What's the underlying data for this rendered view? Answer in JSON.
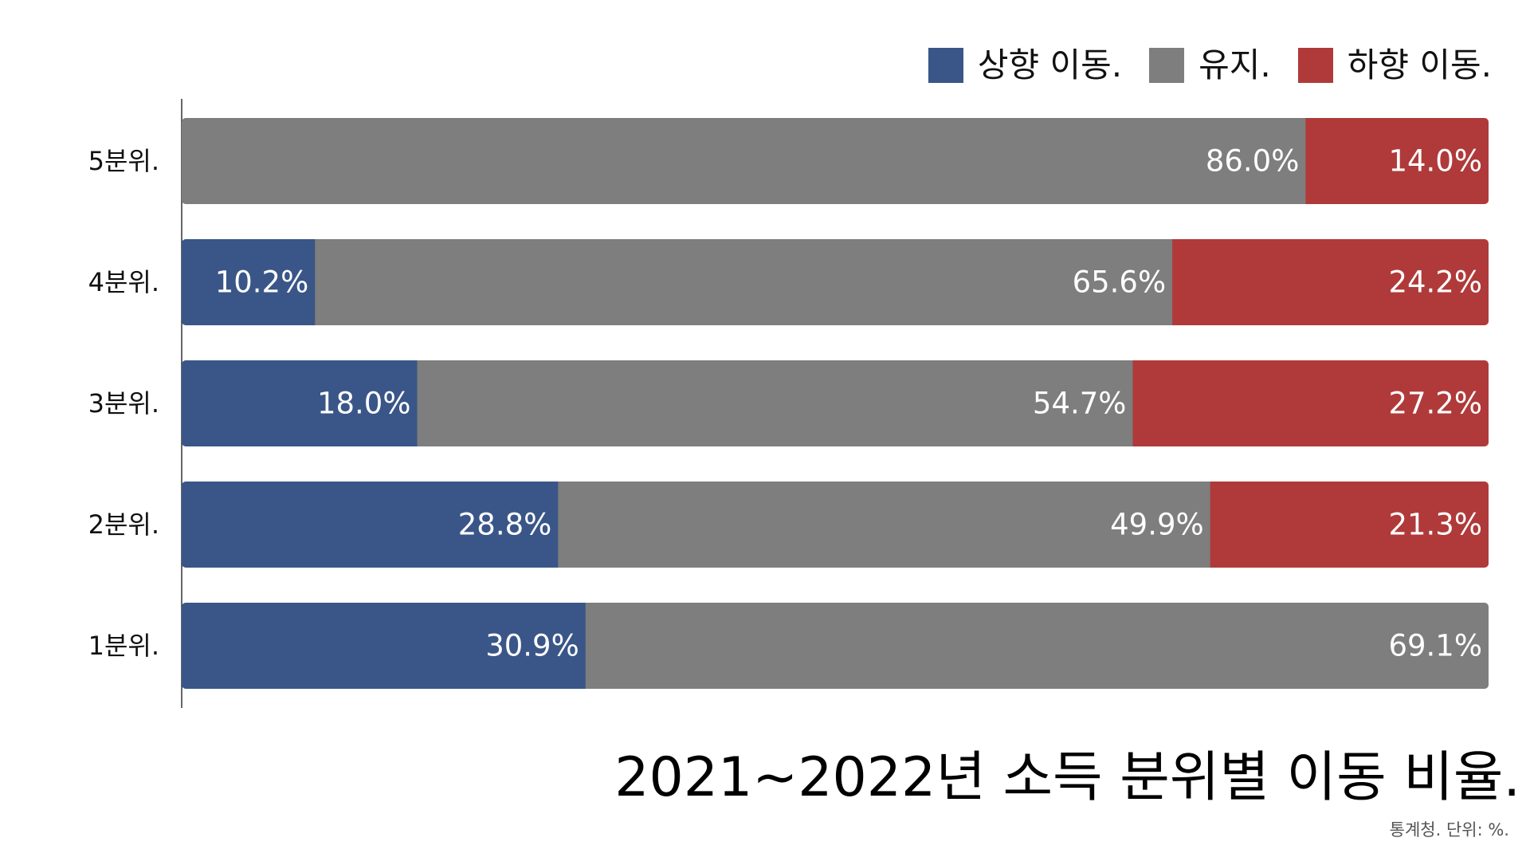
{
  "chart_data": {
    "type": "bar",
    "orientation": "horizontal",
    "stacked": true,
    "title": "2021~2022년 소득 분위별 이동 비율.",
    "source_note": "통계청. 단위: %.",
    "categories": [
      "5분위.",
      "4분위.",
      "3분위.",
      "2분위.",
      "1분위."
    ],
    "series": [
      {
        "name": "상향 이동.",
        "color": "#3a5688",
        "values": [
          0,
          10.2,
          18.0,
          28.8,
          30.9
        ],
        "labels": [
          "",
          "10.2%",
          "18.0%",
          "28.8%",
          "30.9%"
        ]
      },
      {
        "name": "유지.",
        "color": "#7d7e7d",
        "values": [
          86.0,
          65.6,
          54.7,
          49.9,
          69.1
        ],
        "labels": [
          "86.0%",
          "65.6%",
          "54.7%",
          "49.9%",
          "69.1%"
        ]
      },
      {
        "name": "하향 이동.",
        "color": "#b03a3a",
        "values": [
          14.0,
          24.2,
          27.2,
          21.3,
          0
        ],
        "labels": [
          "14.0%",
          "24.2%",
          "27.2%",
          "21.3%",
          ""
        ]
      }
    ],
    "xlim": [
      0,
      100
    ],
    "grid": false,
    "legend_position": "top-right"
  }
}
